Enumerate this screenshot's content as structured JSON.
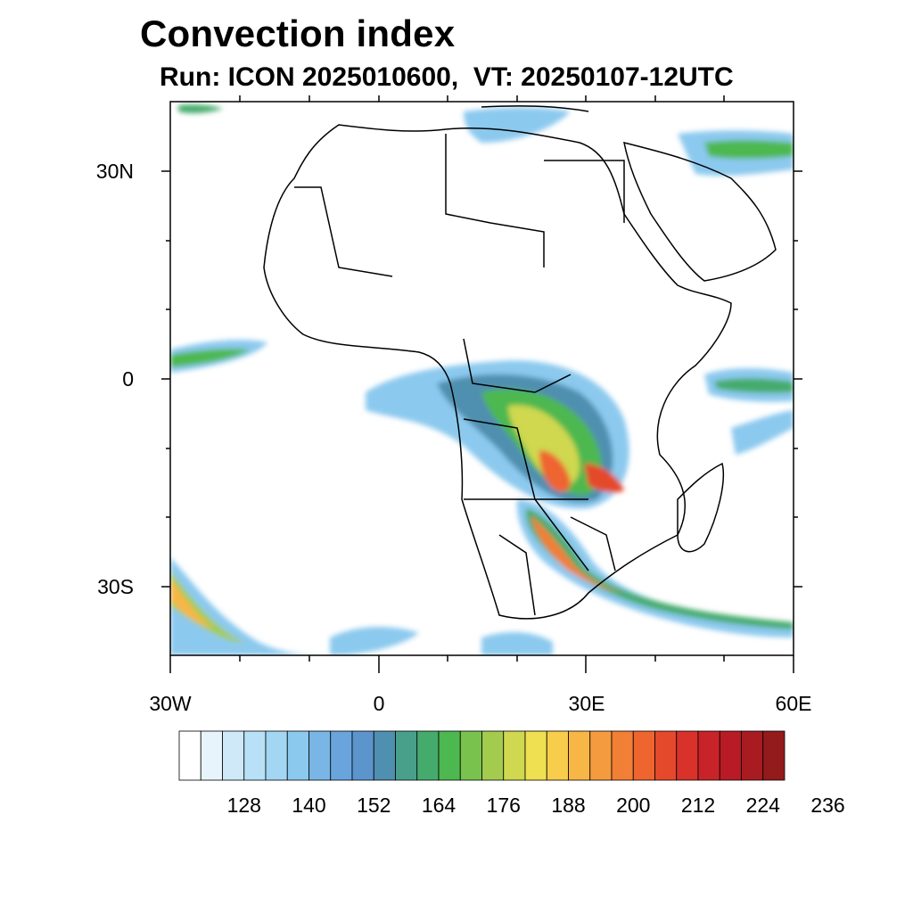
{
  "title": "Convection index",
  "subtitle": "Run: ICON 2025010600,  VT: 20250107-12UTC",
  "map": {
    "lon_range": [
      -30,
      60
    ],
    "lat_range": [
      -40,
      40
    ],
    "lat_ticks": [
      {
        "lat": 30,
        "label": "30N"
      },
      {
        "lat": 0,
        "label": "0"
      },
      {
        "lat": -30,
        "label": "30S"
      }
    ],
    "lon_ticks": [
      {
        "lon": -30,
        "label": "30W"
      },
      {
        "lon": 0,
        "label": "0"
      },
      {
        "lon": 30,
        "label": "30E"
      },
      {
        "lon": 60,
        "label": "60E"
      }
    ]
  },
  "colorbar": {
    "colors": [
      "#ffffff",
      "#e8f4fb",
      "#cfe9f8",
      "#b8e1f7",
      "#a2d6f3",
      "#8cc9ee",
      "#79b6e5",
      "#6aa4dc",
      "#5b95cc",
      "#4f8fb0",
      "#48a08a",
      "#45ab6c",
      "#4db84f",
      "#79c24d",
      "#a3cc4f",
      "#cfd84f",
      "#eee050",
      "#f8cd4c",
      "#f8b647",
      "#f59b3f",
      "#f27f36",
      "#ee6530",
      "#e4492b",
      "#d8322a",
      "#c9232a",
      "#b81b26",
      "#a81b21",
      "#931b1b"
    ],
    "labels": [
      "128",
      "140",
      "152",
      "164",
      "176",
      "188",
      "200",
      "212",
      "224",
      "236"
    ]
  }
}
